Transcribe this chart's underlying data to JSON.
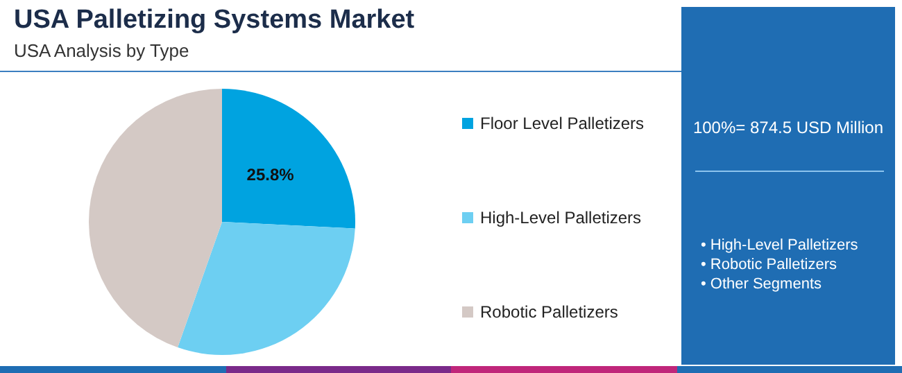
{
  "chart_data": {
    "type": "pie",
    "title": "USA Palletizing Systems Market",
    "subtitle": "USA Analysis by Type",
    "categories": [
      "Floor Level Palletizers",
      "High-Level Palletizers",
      "Robotic Palletizers"
    ],
    "values": [
      25.8,
      29.6,
      44.6
    ],
    "colors": [
      "#00a3e0",
      "#6dcff2",
      "#d4c9c5"
    ],
    "value_labels": [
      "25.8%",
      null,
      null
    ],
    "legend": "right",
    "annotations": [
      "100%= 874.5 USD Million",
      "• High-Level Palletizers",
      "• Robotic Palletizers",
      "• Other Segments"
    ]
  }
}
